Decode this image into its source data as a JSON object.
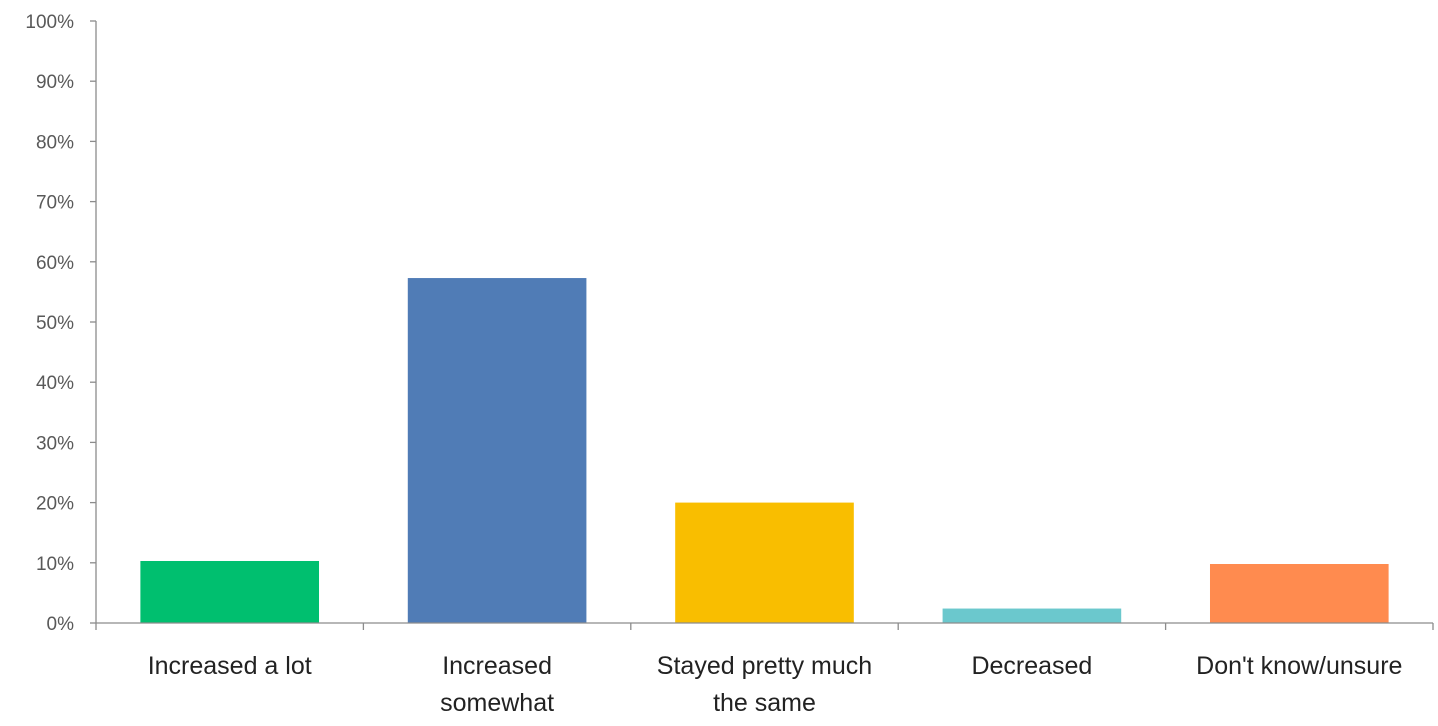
{
  "chart_data": {
    "type": "bar",
    "title": "",
    "xlabel": "",
    "ylabel": "",
    "ylim": [
      0,
      100
    ],
    "y_ticks": [
      0,
      10,
      20,
      30,
      40,
      50,
      60,
      70,
      80,
      90,
      100
    ],
    "y_tick_format": "{v}%",
    "grid": false,
    "legend": "none",
    "categories": [
      [
        "Increased a lot"
      ],
      [
        "Increased",
        "somewhat"
      ],
      [
        "Stayed pretty much",
        "the same"
      ],
      [
        "Decreased"
      ],
      [
        "Don't know/unsure"
      ]
    ],
    "values": [
      10.3,
      57.3,
      20.0,
      2.4,
      9.8
    ],
    "colors": [
      "#00bf6f",
      "#507cb6",
      "#f9be00",
      "#6bc8cd",
      "#ff8b4f"
    ],
    "axis_color": "#8c8c8c",
    "tick_label_color": "#595959",
    "category_label_color": "#222222"
  }
}
